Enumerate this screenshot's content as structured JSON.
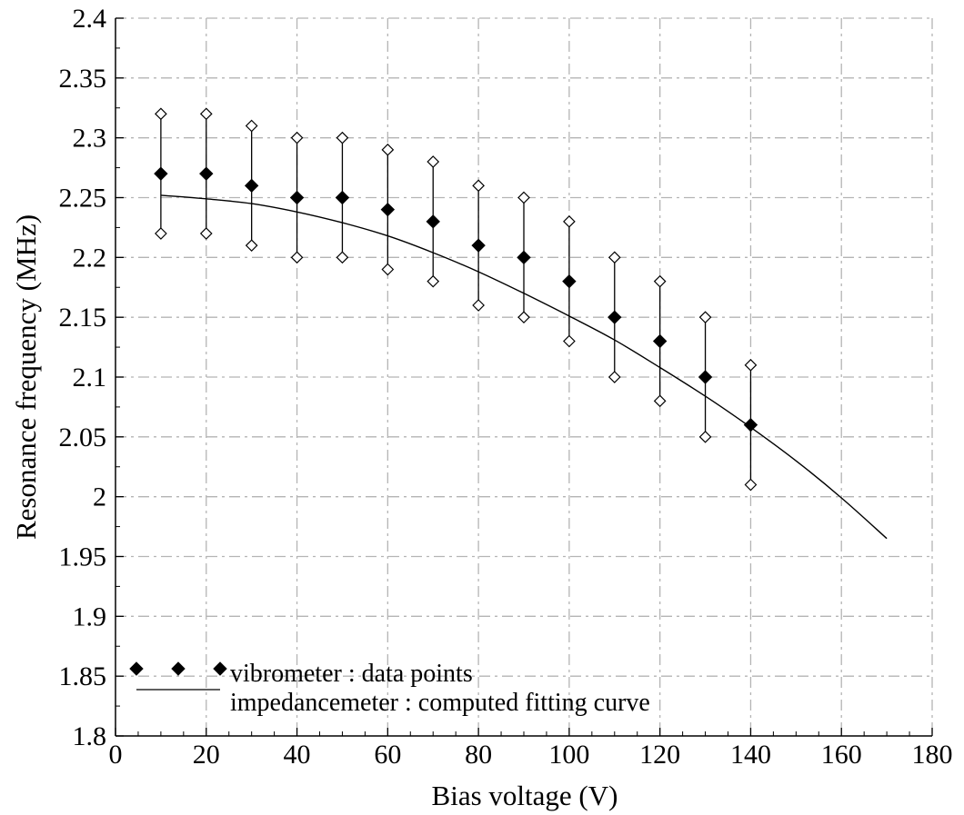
{
  "chart_data": {
    "type": "scatter",
    "xlabel": "Bias voltage (V)",
    "ylabel": "Resonance frequency (MHz)",
    "xlim": [
      0,
      180
    ],
    "ylim": [
      1.8,
      2.4
    ],
    "x_ticks": [
      "0",
      "20",
      "40",
      "60",
      "80",
      "100",
      "120",
      "140",
      "160",
      "180"
    ],
    "y_ticks": [
      "1.8",
      "1.85",
      "1.9",
      "1.95",
      "2",
      "2.05",
      "2.1",
      "2.15",
      "2.2",
      "2.25",
      "2.3",
      "2.35",
      "2.4"
    ],
    "grid": true,
    "legend_position": "bottom-left",
    "series": [
      {
        "name": "vibrometer : data points",
        "kind": "points-with-error-bars",
        "x": [
          10,
          20,
          30,
          40,
          50,
          60,
          70,
          80,
          90,
          100,
          110,
          120,
          130,
          140
        ],
        "y": [
          2.27,
          2.27,
          2.26,
          2.25,
          2.25,
          2.24,
          2.23,
          2.21,
          2.2,
          2.18,
          2.15,
          2.13,
          2.1,
          2.06
        ],
        "y_upper": [
          2.32,
          2.32,
          2.31,
          2.3,
          2.3,
          2.29,
          2.28,
          2.26,
          2.25,
          2.23,
          2.2,
          2.18,
          2.15,
          2.11
        ],
        "y_lower": [
          2.22,
          2.22,
          2.21,
          2.2,
          2.2,
          2.19,
          2.18,
          2.16,
          2.15,
          2.13,
          2.1,
          2.08,
          2.05,
          2.01
        ]
      },
      {
        "name": "impedancemeter : computed fitting curve",
        "kind": "line",
        "x": [
          10,
          20,
          30,
          40,
          50,
          60,
          70,
          80,
          90,
          100,
          110,
          120,
          130,
          140,
          150,
          160,
          170
        ],
        "y": [
          2.252,
          2.249,
          2.245,
          2.238,
          2.229,
          2.218,
          2.204,
          2.188,
          2.17,
          2.151,
          2.131,
          2.108,
          2.084,
          2.058,
          2.03,
          1.999,
          1.965
        ]
      }
    ]
  }
}
